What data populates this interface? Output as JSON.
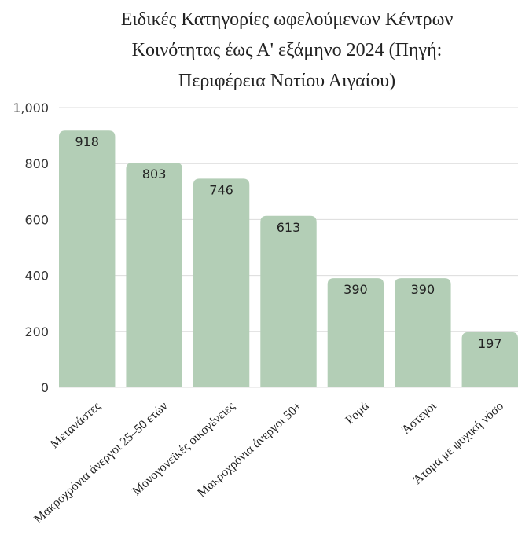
{
  "chart_data": {
    "type": "bar",
    "title": [
      "Ειδικές Κατηγορίες ωφελούμενων Κέντρων",
      "Κοινότητας έως Α' εξάμηνο 2024 (Πηγή:",
      "Περιφέρεια Νοτίου Αιγαίου)"
    ],
    "categories": [
      "Μετανάστες",
      "Μακροχρόνια άνεργοι 25–50 ετών",
      "Μονογονεϊκές οικογένειες",
      "Μακροχρόνια άνεργοι 50+",
      "Ρομά",
      "Άστεγοι",
      "Άτομα με ψυχική νόσο"
    ],
    "values": [
      918,
      803,
      746,
      613,
      390,
      390,
      197
    ],
    "ylim": [
      0,
      1000
    ],
    "yticks": [
      0,
      200,
      400,
      600,
      800,
      1000
    ],
    "ytick_labels": [
      "0",
      "200",
      "400",
      "600",
      "800",
      "1,000"
    ],
    "grid": true,
    "bar_color": "#b3ceb6",
    "grid_color": "#dcdcdc"
  }
}
